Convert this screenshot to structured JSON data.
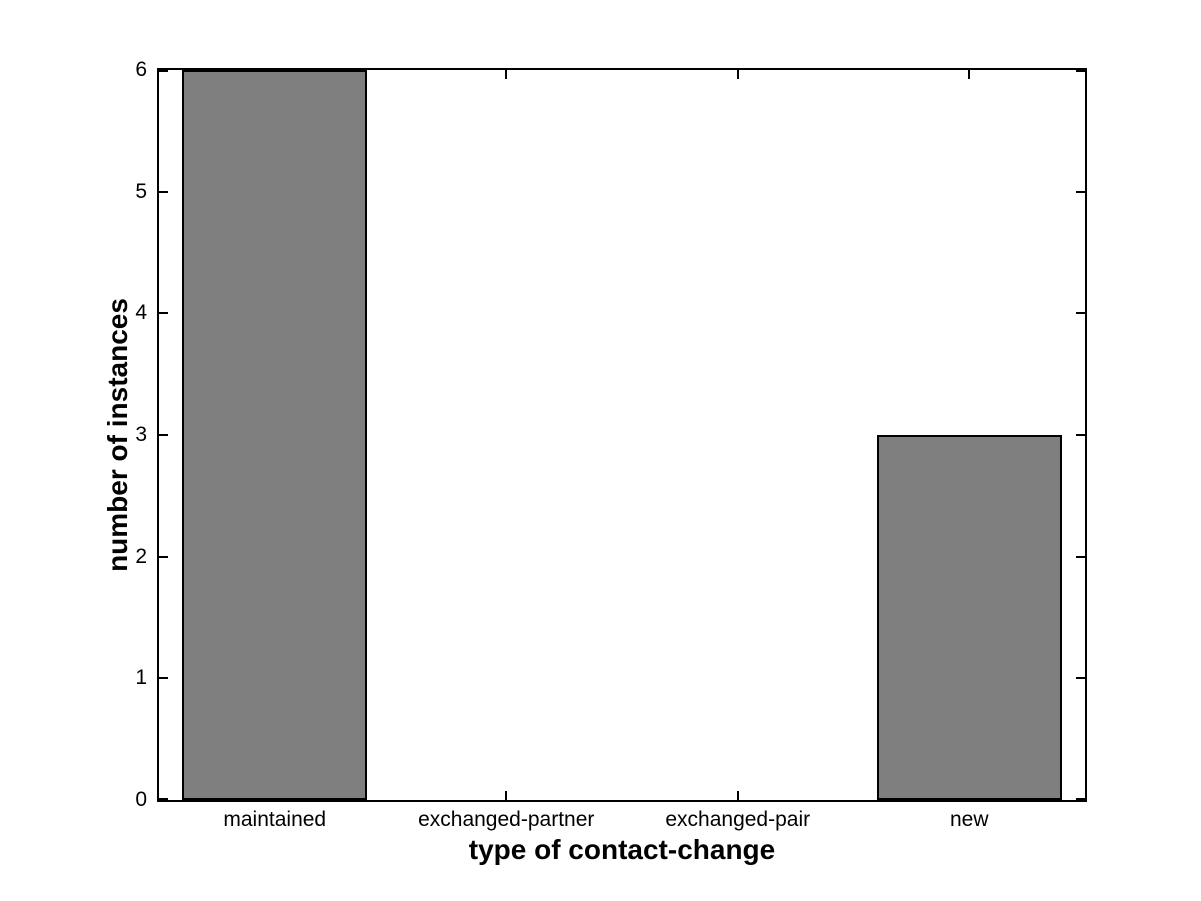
{
  "figure": {
    "background": "#ffffff"
  },
  "chart_data": {
    "type": "bar",
    "categories": [
      "maintained",
      "exchanged-partner",
      "exchanged-pair",
      "new"
    ],
    "values": [
      6,
      0,
      0,
      3
    ],
    "title": "",
    "xlabel": "type of contact-change",
    "ylabel": "number of instances",
    "ylim": [
      0,
      6
    ],
    "yticks": [
      0,
      1,
      2,
      3,
      4,
      5,
      6
    ],
    "bar_color": "#7f7f7f",
    "bar_edge_color": "#000000",
    "axis_color": "#000000",
    "bar_width_ratio": 0.8,
    "grid": false,
    "legend": null,
    "tick_direction": "in",
    "box": true
  }
}
